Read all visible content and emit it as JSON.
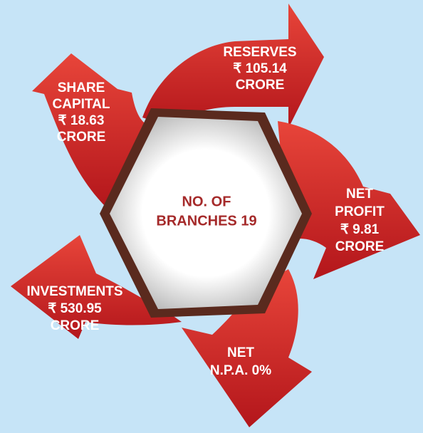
{
  "center": {
    "lines": [
      "NO. OF",
      "BRANCHES 19"
    ]
  },
  "items": [
    {
      "lines": [
        "RESERVES",
        "₹ 105.14",
        "CRORE"
      ]
    },
    {
      "lines": [
        "SHARE",
        "CAPITAL",
        "₹ 18.63",
        "CRORE"
      ]
    },
    {
      "lines": [
        "NET",
        "PROFIT",
        "₹ 9.81",
        "CRORE"
      ]
    },
    {
      "lines": [
        "NET",
        "N.P.A. 0%"
      ]
    },
    {
      "lines": [
        "INVESTMENTS",
        "₹ 530.95",
        "CRORE"
      ]
    }
  ]
}
